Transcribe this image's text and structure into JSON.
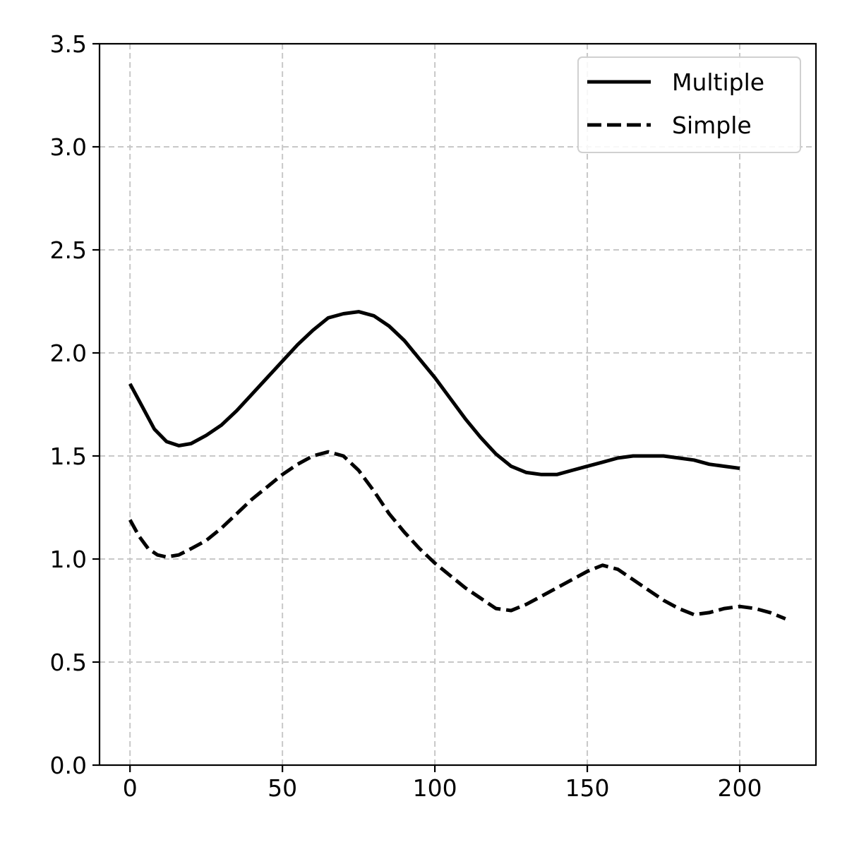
{
  "chart_data": {
    "type": "line",
    "title": "",
    "xlabel": "",
    "ylabel": "",
    "xlim": [
      -10,
      225
    ],
    "ylim": [
      0.0,
      3.5
    ],
    "x_ticks": [
      0,
      50,
      100,
      150,
      200
    ],
    "x_tick_labels": [
      "0",
      "50",
      "100",
      "150",
      "200"
    ],
    "y_ticks": [
      0.0,
      0.5,
      1.0,
      1.5,
      2.0,
      2.5,
      3.0,
      3.5
    ],
    "y_tick_labels": [
      "0.0",
      "0.5",
      "1.0",
      "1.5",
      "2.0",
      "2.5",
      "3.0",
      "3.5"
    ],
    "grid": true,
    "legend": {
      "placement": "top-right"
    },
    "series": [
      {
        "name": "Multiple",
        "style": "solid",
        "color": "#000000",
        "x": [
          0,
          4,
          8,
          12,
          16,
          20,
          25,
          30,
          35,
          40,
          45,
          50,
          55,
          60,
          65,
          70,
          75,
          80,
          85,
          90,
          95,
          100,
          105,
          110,
          115,
          120,
          125,
          130,
          135,
          140,
          145,
          150,
          155,
          160,
          165,
          170,
          175,
          180,
          185,
          190,
          195,
          200
        ],
        "y": [
          1.85,
          1.74,
          1.63,
          1.57,
          1.55,
          1.56,
          1.6,
          1.65,
          1.72,
          1.8,
          1.88,
          1.96,
          2.04,
          2.11,
          2.17,
          2.19,
          2.2,
          2.18,
          2.13,
          2.06,
          1.97,
          1.88,
          1.78,
          1.68,
          1.59,
          1.51,
          1.45,
          1.42,
          1.41,
          1.41,
          1.43,
          1.45,
          1.47,
          1.49,
          1.5,
          1.5,
          1.5,
          1.49,
          1.48,
          1.46,
          1.45,
          1.44
        ]
      },
      {
        "name": "Simple",
        "style": "dashed",
        "color": "#000000",
        "x": [
          0,
          3,
          6,
          9,
          12,
          16,
          20,
          25,
          30,
          35,
          40,
          45,
          50,
          55,
          60,
          65,
          70,
          75,
          80,
          85,
          90,
          95,
          100,
          105,
          110,
          115,
          120,
          125,
          130,
          135,
          140,
          145,
          150,
          155,
          160,
          165,
          170,
          175,
          180,
          185,
          190,
          195,
          200,
          205,
          210,
          215
        ],
        "y": [
          1.19,
          1.11,
          1.05,
          1.02,
          1.01,
          1.02,
          1.05,
          1.09,
          1.15,
          1.22,
          1.29,
          1.35,
          1.41,
          1.46,
          1.5,
          1.52,
          1.5,
          1.43,
          1.33,
          1.22,
          1.13,
          1.05,
          0.98,
          0.92,
          0.86,
          0.81,
          0.76,
          0.75,
          0.78,
          0.82,
          0.86,
          0.9,
          0.94,
          0.97,
          0.95,
          0.9,
          0.85,
          0.8,
          0.76,
          0.73,
          0.74,
          0.76,
          0.77,
          0.76,
          0.74,
          0.71
        ]
      }
    ]
  }
}
